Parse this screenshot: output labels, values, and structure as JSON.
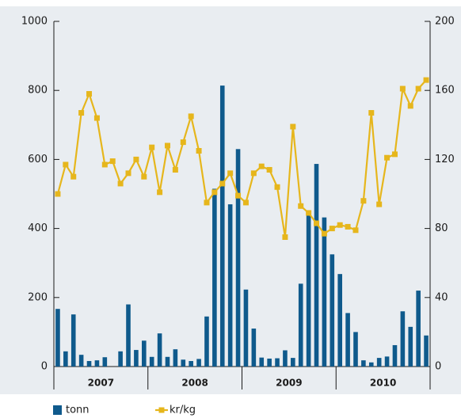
{
  "chart_data": {
    "type": "bar",
    "categories": [
      null,
      null,
      null,
      null,
      null,
      null,
      null,
      null,
      null,
      null,
      null,
      null,
      null,
      null,
      null,
      null,
      null,
      null,
      null,
      null,
      null,
      null,
      null,
      null,
      null,
      null,
      null,
      null,
      null,
      null,
      null,
      null,
      null,
      null,
      null,
      null,
      null,
      null,
      null,
      null,
      null,
      null,
      null,
      null,
      null,
      null,
      null,
      null
    ],
    "year_labels": [
      "2007",
      "2008",
      "2009",
      "2010"
    ],
    "series": [
      {
        "name": "tonn",
        "type": "bar",
        "color": "#0f5a8c",
        "values": [
          167,
          44,
          151,
          34,
          16,
          18,
          27,
          0,
          44,
          180,
          48,
          75,
          28,
          96,
          28,
          50,
          20,
          16,
          22,
          145,
          515,
          814,
          470,
          630,
          223,
          110,
          26,
          23,
          24,
          47,
          25,
          240,
          440,
          587,
          432,
          325,
          268,
          155,
          100,
          18,
          12,
          25,
          29,
          62,
          160,
          115,
          220,
          90
        ]
      },
      {
        "name": "kr/kg",
        "type": "line",
        "axis": "y2",
        "color": "#e6b61c",
        "values": [
          100,
          117,
          110,
          147,
          158,
          144,
          117,
          119,
          106,
          112,
          120,
          110,
          127,
          101,
          128,
          114,
          130,
          145,
          125,
          95,
          101,
          106,
          112,
          99,
          95,
          112,
          116,
          114,
          104,
          75,
          139,
          93,
          89,
          83,
          77,
          80,
          82,
          81,
          79,
          96,
          147,
          94,
          121,
          123,
          161,
          151,
          161,
          166
        ]
      }
    ],
    "ylim": [
      0,
      1000
    ],
    "yticks": [
      0,
      200,
      400,
      600,
      800,
      1000
    ],
    "y2lim": [
      0,
      200
    ],
    "y2ticks": [
      0,
      40,
      80,
      120,
      160,
      200
    ]
  }
}
